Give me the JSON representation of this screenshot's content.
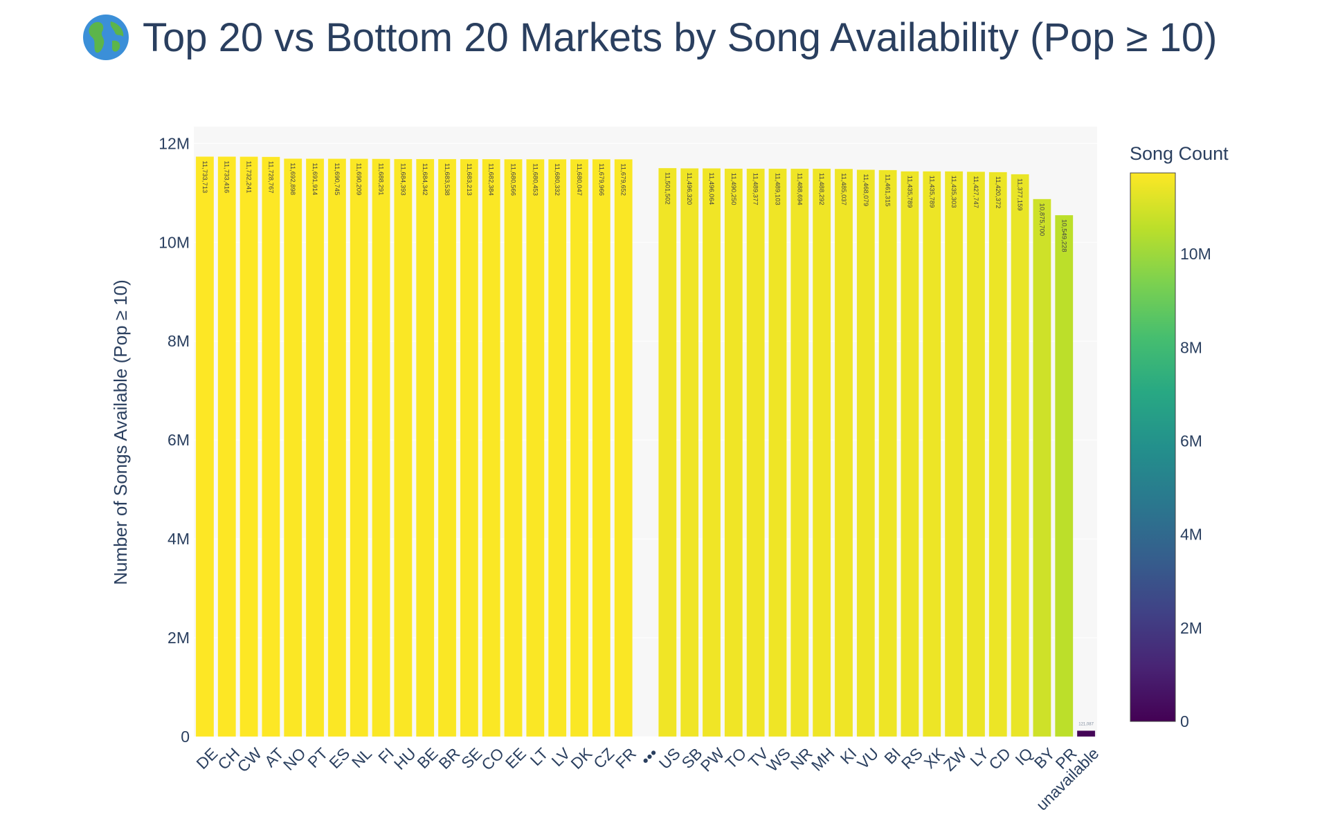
{
  "title": {
    "icon": "globe-emoji-icon",
    "text": "Top 20 vs Bottom 20 Markets by Song Availability (Pop ≥ 10)"
  },
  "chart_data": {
    "type": "bar",
    "title": "Top 20 vs Bottom 20 Markets by Song Availability (Pop ≥ 10)",
    "xlabel": "",
    "ylabel": "Number of Songs Available (Pop ≥ 10)",
    "ylim": [
      0,
      12340000
    ],
    "yticks": [
      0,
      2000000,
      4000000,
      6000000,
      8000000,
      10000000,
      12000000
    ],
    "ytick_labels": [
      "0",
      "2M",
      "4M",
      "6M",
      "8M",
      "10M",
      "12M"
    ],
    "grid": true,
    "categories": [
      "DE",
      "CH",
      "CW",
      "AT",
      "NO",
      "PT",
      "ES",
      "NL",
      "FI",
      "HU",
      "BE",
      "BR",
      "SE",
      "CO",
      "EE",
      "LT",
      "LV",
      "DK",
      "CZ",
      "FR",
      "•••",
      "US",
      "SB",
      "PW",
      "TO",
      "TV",
      "WS",
      "NR",
      "MH",
      "KI",
      "VU",
      "BI",
      "RS",
      "XK",
      "ZW",
      "LY",
      "CD",
      "IQ",
      "BY",
      "PR",
      "unavailable"
    ],
    "values": [
      11733713,
      11733416,
      11732241,
      11728767,
      11692898,
      11691914,
      11690745,
      11690209,
      11688291,
      11684393,
      11684342,
      11683538,
      11683213,
      11682384,
      11680566,
      11680453,
      11680332,
      11680047,
      11679966,
      11679652,
      null,
      11501502,
      11496320,
      11496064,
      11490250,
      11489377,
      11489103,
      11488694,
      11488292,
      11485037,
      11468079,
      11461315,
      11435789,
      11435789,
      11435303,
      11427747,
      11420372,
      11377159,
      10875700,
      10549228,
      121087
    ],
    "data_labels": [
      "11,733,713",
      "11,733,416",
      "11,732,241",
      "11,728,767",
      "11,692,898",
      "11,691,914",
      "11,690,745",
      "11,690,209",
      "11,688,291",
      "11,684,393",
      "11,684,342",
      "11,683,538",
      "11,683,213",
      "11,682,384",
      "11,680,566",
      "11,680,453",
      "11,680,332",
      "11,680,047",
      "11,679,966",
      "11,679,652",
      "",
      "11,501,502",
      "11,496,320",
      "11,496,064",
      "11,490,250",
      "11,489,377",
      "11,489,103",
      "11,488,694",
      "11,488,292",
      "11,485,037",
      "11,468,079",
      "11,461,315",
      "11,435,789",
      "11,435,789",
      "11,435,303",
      "11,427,747",
      "11,420,372",
      "11,377,159",
      "10,875,700",
      "10,549,228",
      "121,087"
    ],
    "colorscale": "viridis",
    "colorbar": {
      "title": "Song Count",
      "range": [
        0,
        11733713
      ],
      "ticks": [
        0,
        2000000,
        4000000,
        6000000,
        8000000,
        10000000
      ],
      "tick_labels": [
        "0",
        "2M",
        "4M",
        "6M",
        "8M",
        "10M"
      ]
    },
    "colors": {
      "plot_bg": "#f7f7f7",
      "grid": "#ffffff",
      "text": "#2a3f5f"
    }
  }
}
